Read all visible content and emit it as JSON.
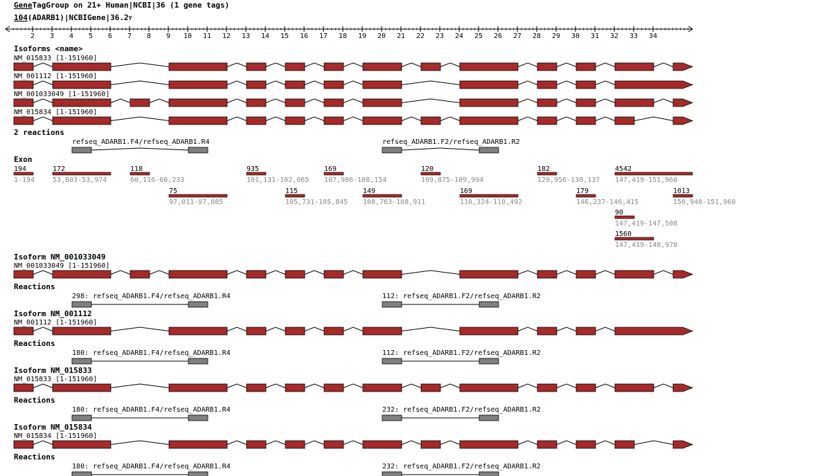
{
  "header": {
    "title_link": "Gene",
    "title_rest": "TagGroup on 21+ Human|NCBI|36 (1 gene tags)",
    "gene_link": "104",
    "gene_rest": "(ADARB1)|NCBIGene|36.2",
    "collapse_glyph": "Y"
  },
  "ruler": {
    "ticks": [
      "2",
      "3",
      "4",
      "5",
      "6",
      "7",
      "8",
      "9",
      "10",
      "11",
      "12",
      "13",
      "14",
      "15",
      "16",
      "17",
      "18",
      "19",
      "20",
      "21",
      "22",
      "23",
      "24",
      "25",
      "26",
      "27",
      "28",
      "29",
      "30",
      "31",
      "32",
      "33",
      "34"
    ]
  },
  "colors": {
    "exon": "#a52a2a",
    "primer": "#808080",
    "range": "#888888"
  },
  "isoforms_heading": "Isoforms <name>",
  "isoforms": [
    {
      "name": "NM_015833 [1-151960]",
      "exons": [
        0,
        1,
        3,
        4,
        5,
        6,
        7,
        8,
        9,
        10,
        11,
        12,
        13
      ]
    },
    {
      "name": "NM_001112 [1-151960]",
      "exons": [
        0,
        1,
        3,
        4,
        5,
        6,
        7,
        9,
        10,
        11,
        "L"
      ]
    },
    {
      "name": "NM_001033049 [1-151960]",
      "exons": [
        0,
        1,
        2,
        3,
        4,
        5,
        6,
        7,
        9,
        10,
        11,
        12,
        13
      ]
    },
    {
      "name": "NM_015834 [1-151960]",
      "exons": [
        0,
        1,
        3,
        4,
        5,
        6,
        7,
        8,
        9,
        10,
        11,
        "S",
        13
      ]
    }
  ],
  "reactions_heading": "2 reactions",
  "reactions": [
    {
      "label": "refseq_ADARB1.F4/refseq_ADARB1.R4"
    },
    {
      "label": "refseq_ADARB1.F2/refseq_ADARB1.R2"
    }
  ],
  "exon_heading": "Exon",
  "exon_table": [
    {
      "len": "194",
      "range": "1-194",
      "col": 0,
      "row": 0
    },
    {
      "len": "172",
      "range": "53,803-53,974",
      "col": 1,
      "row": 0
    },
    {
      "len": "118",
      "range": "60,116-60,233",
      "col": 2,
      "row": 0
    },
    {
      "len": "935",
      "range": "101,131-102,065",
      "col": 4,
      "row": 0
    },
    {
      "len": "169",
      "range": "107,986-108,154",
      "col": 6,
      "row": 0
    },
    {
      "len": "120",
      "range": "109,875-109,994",
      "col": 8,
      "row": 0
    },
    {
      "len": "182",
      "range": "129,956-130,137",
      "col": 10,
      "row": 0
    },
    {
      "len": "4542",
      "range": "147,419-151,960",
      "col": "L",
      "row": 0
    },
    {
      "len": "75",
      "range": "97,011-97,085",
      "col": 3,
      "row": 1
    },
    {
      "len": "115",
      "range": "105,731-105,845",
      "col": 5,
      "row": 1
    },
    {
      "len": "149",
      "range": "108,763-108,911",
      "col": 7,
      "row": 1
    },
    {
      "len": "169",
      "range": "110,324-110,492",
      "col": 9,
      "row": 1
    },
    {
      "len": "179",
      "range": "146,237-146,415",
      "col": 11,
      "row": 1
    },
    {
      "len": "1013",
      "range": "150,948-151,960",
      "col": 13,
      "row": 1
    },
    {
      "len": "90",
      "range": "147,419-147,508",
      "col": "S",
      "row": 2
    },
    {
      "len": "1560",
      "range": "147,419-148,978",
      "col": 12,
      "row": 3
    }
  ],
  "isoform_sections": [
    {
      "title": "Isoform NM_001033049",
      "track": "NM_001033049 [1-151960]",
      "iso": 2,
      "reactions_label": "Reactions",
      "reactions": [
        "298: refseq_ADARB1.F4/refseq_ADARB1.R4",
        "112: refseq_ADARB1.F2/refseq_ADARB1.R2"
      ]
    },
    {
      "title": "Isoform NM_001112",
      "track": "NM_001112 [1-151960]",
      "iso": 1,
      "reactions_label": "Reactions",
      "reactions": [
        "180: refseq_ADARB1.F4/refseq_ADARB1.R4",
        "112: refseq_ADARB1.F2/refseq_ADARB1.R2"
      ]
    },
    {
      "title": "Isoform NM_015833",
      "track": "NM_015833 [1-151960]",
      "iso": 0,
      "reactions_label": "Reactions",
      "reactions": [
        "180: refseq_ADARB1.F4/refseq_ADARB1.R4",
        "232: refseq_ADARB1.F2/refseq_ADARB1.R2"
      ]
    },
    {
      "title": "Isoform NM_015834",
      "track": "NM_015834 [1-151960]",
      "iso": 3,
      "reactions_label": "Reactions",
      "reactions": [
        "180: refseq_ADARB1.F4/refseq_ADARB1.R4",
        "232: refseq_ADARB1.F2/refseq_ADARB1.R2"
      ]
    }
  ]
}
